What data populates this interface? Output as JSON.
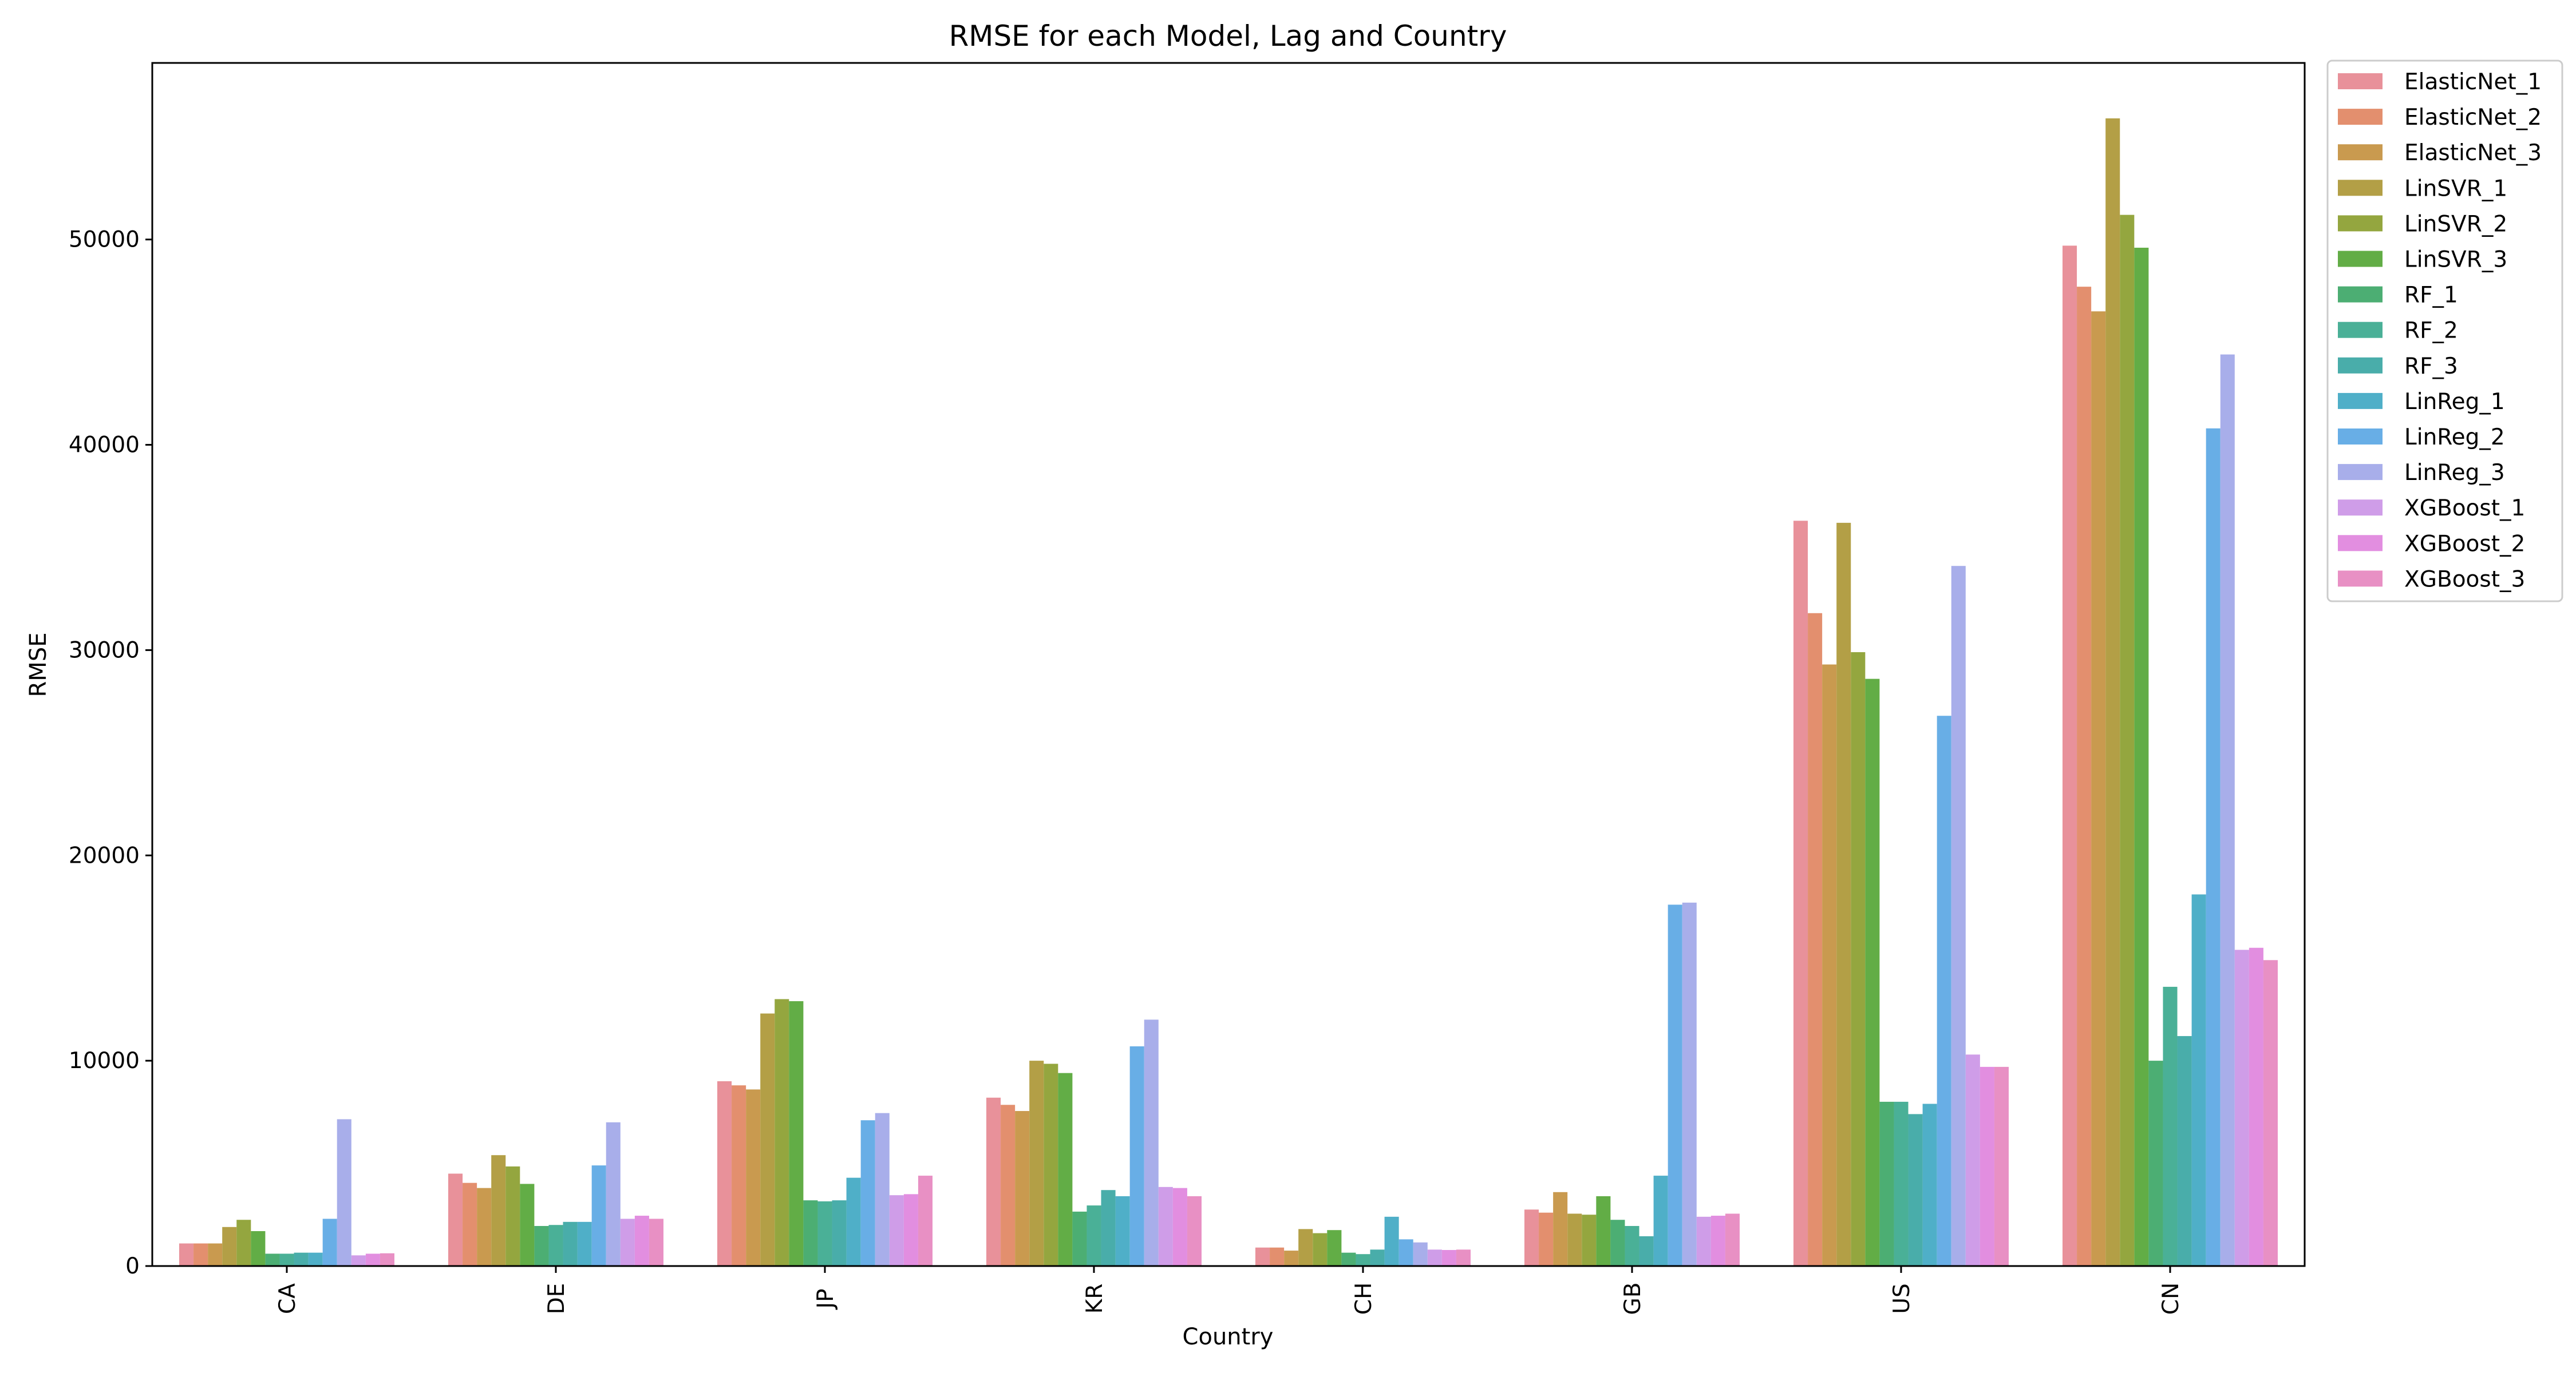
{
  "chart_data": {
    "type": "bar",
    "title": "RMSE for each Model, Lag and Country",
    "xlabel": "Country",
    "ylabel": "RMSE",
    "ylim": [
      0,
      58600
    ],
    "yticks": [
      0,
      10000,
      20000,
      30000,
      40000,
      50000
    ],
    "grid": false,
    "legend_position": "outside-right-top",
    "categories": [
      "CA",
      "DE",
      "JP",
      "KR",
      "CH",
      "GB",
      "US",
      "CN"
    ],
    "series": [
      {
        "name": "ElasticNet_1",
        "color": "#e8919a",
        "values": [
          1100,
          4500,
          9000,
          8200,
          900,
          2750,
          36300,
          49700
        ]
      },
      {
        "name": "ElasticNet_2",
        "color": "#e38f6e",
        "values": [
          1100,
          4050,
          8800,
          7850,
          900,
          2600,
          31800,
          47700
        ]
      },
      {
        "name": "ElasticNet_3",
        "color": "#c99a4f",
        "values": [
          1100,
          3800,
          8600,
          7550,
          750,
          3600,
          29300,
          46500
        ]
      },
      {
        "name": "LinSVR_1",
        "color": "#b39f46",
        "values": [
          1900,
          5400,
          12300,
          10000,
          1800,
          2550,
          36200,
          55900
        ]
      },
      {
        "name": "LinSVR_2",
        "color": "#94a63f",
        "values": [
          2250,
          4850,
          13000,
          9850,
          1600,
          2500,
          29900,
          51200
        ]
      },
      {
        "name": "LinSVR_3",
        "color": "#62ad46",
        "values": [
          1700,
          4000,
          12900,
          9400,
          1750,
          3400,
          28600,
          49600
        ]
      },
      {
        "name": "RF_1",
        "color": "#4cae73",
        "values": [
          600,
          1950,
          3200,
          2650,
          650,
          2250,
          8000,
          10000
        ]
      },
      {
        "name": "RF_2",
        "color": "#4ab097",
        "values": [
          600,
          2000,
          3150,
          2950,
          580,
          1950,
          8000,
          13600
        ]
      },
      {
        "name": "RF_3",
        "color": "#49adaa",
        "values": [
          650,
          2150,
          3200,
          3700,
          800,
          1450,
          7400,
          11200
        ]
      },
      {
        "name": "LinReg_1",
        "color": "#4fafc8",
        "values": [
          650,
          2150,
          4300,
          3400,
          2400,
          4400,
          7900,
          18100
        ]
      },
      {
        "name": "LinReg_2",
        "color": "#68aee6",
        "values": [
          2300,
          4900,
          7100,
          10700,
          1300,
          17600,
          26800,
          40800
        ]
      },
      {
        "name": "LinReg_3",
        "color": "#a8aeea",
        "values": [
          7150,
          7000,
          7450,
          12000,
          1150,
          17700,
          34100,
          44400
        ]
      },
      {
        "name": "XGBoost_1",
        "color": "#cf9de8",
        "values": [
          520,
          2300,
          3450,
          3850,
          800,
          2400,
          10300,
          15400
        ]
      },
      {
        "name": "XGBoost_2",
        "color": "#e28ee0",
        "values": [
          600,
          2450,
          3500,
          3800,
          780,
          2450,
          9700,
          15500
        ]
      },
      {
        "name": "XGBoost_3",
        "color": "#e890c4",
        "values": [
          620,
          2300,
          4400,
          3400,
          800,
          2550,
          9700,
          14900
        ]
      }
    ]
  }
}
